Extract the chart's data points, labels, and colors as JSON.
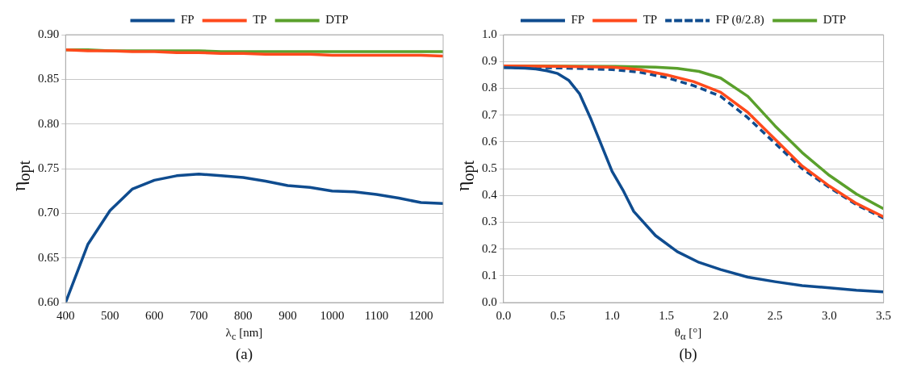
{
  "chart_data": [
    {
      "type": "line",
      "xlabel": "λ$_{c}$ [nm]",
      "ylabel": "η$_{opt}$",
      "xlim": [
        400,
        1250
      ],
      "xticks": [
        400,
        500,
        600,
        700,
        800,
        900,
        1000,
        1100,
        1200
      ],
      "ylim": [
        0.6,
        0.9
      ],
      "yticks": [
        {
          "value": 0.6,
          "label": "0.60"
        },
        {
          "value": 0.65,
          "label": "0.65"
        },
        {
          "value": 0.7,
          "label": "0.70"
        },
        {
          "value": 0.75,
          "label": "0.75"
        },
        {
          "value": 0.8,
          "label": "0.80"
        },
        {
          "value": 0.85,
          "label": "0.85"
        },
        {
          "value": 0.9,
          "label": "0.90"
        }
      ],
      "grid": "y",
      "legend": "top",
      "marker": "none",
      "annotations": [
        "(a)"
      ],
      "x": [
        400,
        450,
        500,
        550,
        600,
        650,
        700,
        750,
        800,
        850,
        900,
        950,
        1000,
        1050,
        1100,
        1150,
        1200,
        1250
      ],
      "series": [
        {
          "name": "FP",
          "color": "#0f4c8f",
          "line_style": "solid",
          "values": [
            0.6,
            0.665,
            0.703,
            0.727,
            0.737,
            0.742,
            0.744,
            0.742,
            0.74,
            0.736,
            0.731,
            0.729,
            0.725,
            0.724,
            0.721,
            0.717,
            0.712,
            0.711
          ]
        },
        {
          "name": "TP",
          "color": "#ff4a1c",
          "line_style": "solid",
          "values": [
            0.883,
            0.882,
            0.882,
            0.881,
            0.881,
            0.88,
            0.88,
            0.879,
            0.879,
            0.878,
            0.878,
            0.878,
            0.877,
            0.877,
            0.877,
            0.877,
            0.877,
            0.876
          ]
        },
        {
          "name": "DTP",
          "color": "#5aa02c",
          "line_style": "solid",
          "values": [
            0.883,
            0.883,
            0.882,
            0.882,
            0.882,
            0.882,
            0.882,
            0.881,
            0.881,
            0.881,
            0.881,
            0.881,
            0.881,
            0.881,
            0.881,
            0.881,
            0.881,
            0.881
          ]
        }
      ]
    },
    {
      "type": "line",
      "xlabel": "θ$_{α}$ [°]",
      "ylabel": "η$_{opt}$",
      "xlim": [
        0,
        3.5
      ],
      "xticks": [
        {
          "value": 0,
          "label": "0.0"
        },
        0.5,
        {
          "value": 1,
          "label": "1.0"
        },
        1.5,
        {
          "value": 2,
          "label": "2.0"
        },
        2.5,
        {
          "value": 3,
          "label": "3.0"
        },
        3.5
      ],
      "ylim": [
        0,
        1
      ],
      "yticks": [
        {
          "value": 0,
          "label": "0.0"
        },
        0.1,
        0.2,
        0.3,
        0.4,
        0.5,
        0.6,
        0.7,
        0.8,
        0.9,
        {
          "value": 1,
          "label": "1.0"
        }
      ],
      "grid": "y",
      "legend": "top",
      "marker": "none",
      "annotations": [
        "(b)"
      ],
      "series": [
        {
          "name": "FP",
          "color": "#0f4c8f",
          "line_style": "solid",
          "x": [
            0,
            0.2,
            0.3,
            0.4,
            0.5,
            0.6,
            0.7,
            0.8,
            0.9,
            1.0,
            1.1,
            1.2,
            1.4,
            1.6,
            1.8,
            2.0,
            2.25,
            2.5,
            2.75,
            3.0,
            3.25,
            3.5
          ],
          "values": [
            0.877,
            0.875,
            0.872,
            0.865,
            0.855,
            0.83,
            0.78,
            0.69,
            0.59,
            0.49,
            0.42,
            0.34,
            0.25,
            0.19,
            0.15,
            0.123,
            0.095,
            0.078,
            0.063,
            0.055,
            0.046,
            0.04
          ]
        },
        {
          "name": "TP",
          "color": "#ff4a1c",
          "line_style": "solid",
          "x": [
            0,
            0.5,
            1.0,
            1.25,
            1.5,
            1.75,
            2.0,
            2.25,
            2.5,
            2.75,
            3.0,
            3.25,
            3.5
          ],
          "values": [
            0.883,
            0.882,
            0.879,
            0.87,
            0.85,
            0.825,
            0.785,
            0.71,
            0.61,
            0.51,
            0.435,
            0.37,
            0.32
          ]
        },
        {
          "name": "FP (θ/2.8)",
          "color": "#0f4c8f",
          "line_style": "dashed",
          "x": [
            0,
            0.5,
            1.0,
            1.25,
            1.5,
            1.75,
            2.0,
            2.25,
            2.5,
            2.75,
            3.0,
            3.25,
            3.5
          ],
          "values": [
            0.878,
            0.876,
            0.87,
            0.86,
            0.84,
            0.81,
            0.77,
            0.69,
            0.595,
            0.5,
            0.43,
            0.365,
            0.315
          ]
        },
        {
          "name": "DTP",
          "color": "#5aa02c",
          "line_style": "solid",
          "x": [
            0,
            1.0,
            1.4,
            1.6,
            1.8,
            2.0,
            2.25,
            2.5,
            2.75,
            3.0,
            3.25,
            3.5
          ],
          "values": [
            0.883,
            0.882,
            0.879,
            0.874,
            0.863,
            0.838,
            0.77,
            0.66,
            0.56,
            0.475,
            0.405,
            0.35
          ]
        }
      ]
    }
  ]
}
